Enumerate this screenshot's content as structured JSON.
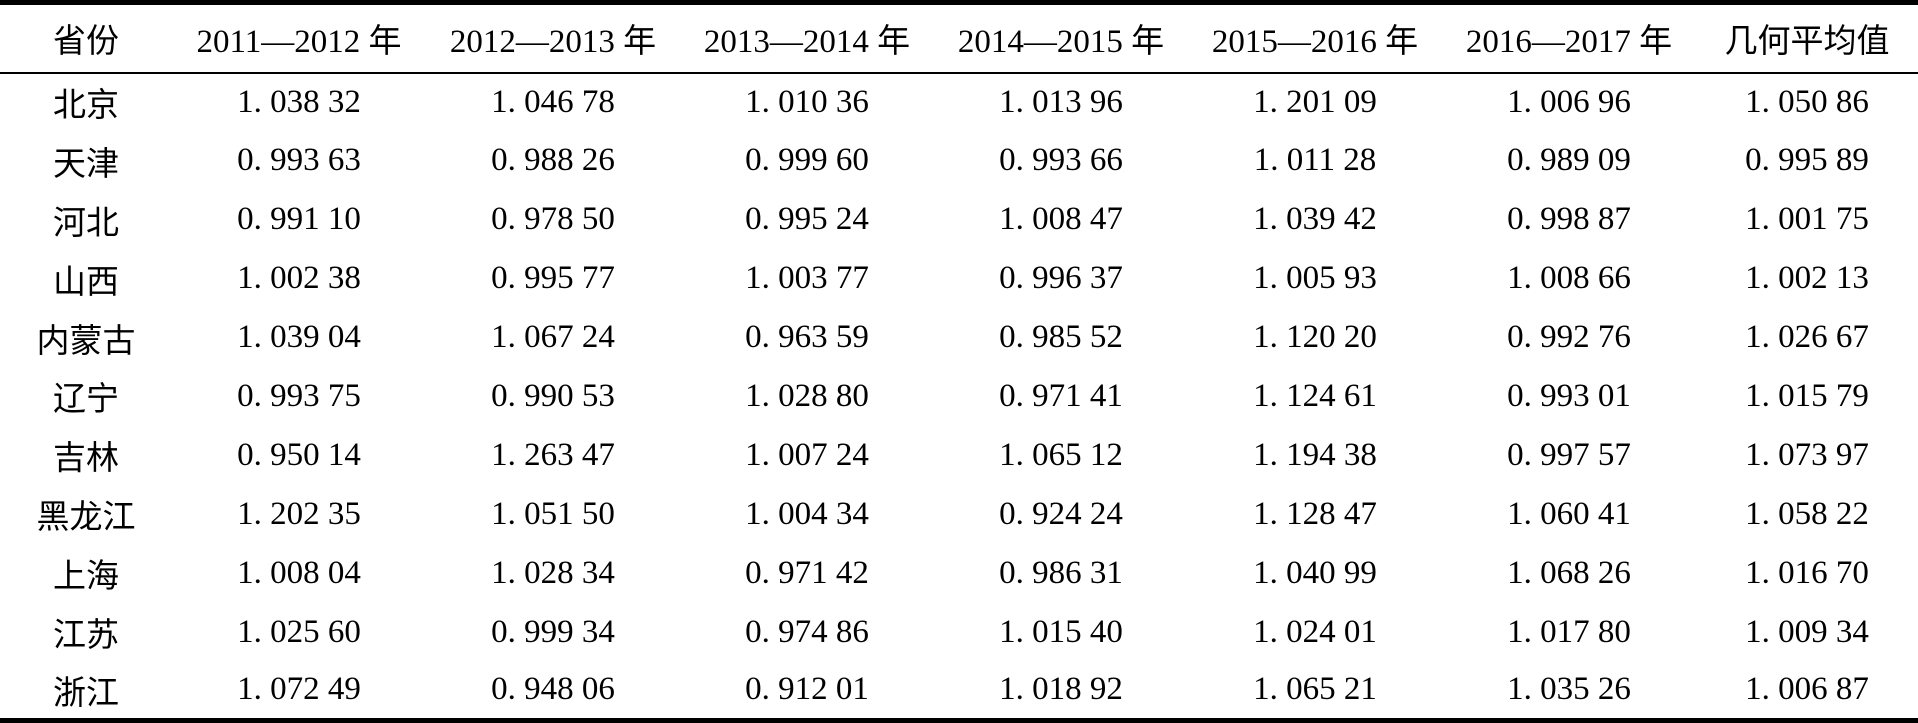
{
  "table": {
    "title_semantic": "province-index-by-year-table",
    "columns": [
      "省份",
      "2011—2012 年",
      "2012—2013 年",
      "2013—2014 年",
      "2014—2015 年",
      "2015—2016 年",
      "2016—2017 年",
      "几何平均值"
    ],
    "rows": [
      {
        "province": "北京",
        "values": [
          "1. 038 32",
          "1. 046 78",
          "1. 010 36",
          "1. 013 96",
          "1. 201 09",
          "1. 006 96",
          "1. 050 86"
        ]
      },
      {
        "province": "天津",
        "values": [
          "0. 993 63",
          "0. 988 26",
          "0. 999 60",
          "0. 993 66",
          "1. 011 28",
          "0. 989 09",
          "0. 995 89"
        ]
      },
      {
        "province": "河北",
        "values": [
          "0. 991 10",
          "0. 978 50",
          "0. 995 24",
          "1. 008 47",
          "1. 039 42",
          "0. 998 87",
          "1. 001 75"
        ]
      },
      {
        "province": "山西",
        "values": [
          "1. 002 38",
          "0. 995 77",
          "1. 003 77",
          "0. 996 37",
          "1. 005 93",
          "1. 008 66",
          "1. 002 13"
        ]
      },
      {
        "province": "内蒙古",
        "values": [
          "1. 039 04",
          "1. 067 24",
          "0. 963 59",
          "0. 985 52",
          "1. 120 20",
          "0. 992 76",
          "1. 026 67"
        ]
      },
      {
        "province": "辽宁",
        "values": [
          "0. 993 75",
          "0. 990 53",
          "1. 028 80",
          "0. 971 41",
          "1. 124 61",
          "0. 993 01",
          "1. 015 79"
        ]
      },
      {
        "province": "吉林",
        "values": [
          "0. 950 14",
          "1. 263 47",
          "1. 007 24",
          "1. 065 12",
          "1. 194 38",
          "0. 997 57",
          "1. 073 97"
        ]
      },
      {
        "province": "黑龙江",
        "values": [
          "1. 202 35",
          "1. 051 50",
          "1. 004 34",
          "0. 924 24",
          "1. 128 47",
          "1. 060 41",
          "1. 058 22"
        ]
      },
      {
        "province": "上海",
        "values": [
          "1. 008 04",
          "1. 028 34",
          "0. 971 42",
          "0. 986 31",
          "1. 040 99",
          "1. 068 26",
          "1. 016 70"
        ]
      },
      {
        "province": "江苏",
        "values": [
          "1. 025 60",
          "0. 999 34",
          "0. 974 86",
          "1. 015 40",
          "1. 024 01",
          "1. 017 80",
          "1. 009 34"
        ]
      },
      {
        "province": "浙江",
        "values": [
          "1. 072 49",
          "0. 948 06",
          "0. 912 01",
          "1. 018 92",
          "1. 065 21",
          "1. 035 26",
          "1. 006 87"
        ]
      }
    ]
  },
  "chart_data": {
    "type": "table",
    "categories": [
      "2011—2012 年",
      "2012—2013 年",
      "2013—2014 年",
      "2014—2015 年",
      "2015—2016 年",
      "2016—2017 年",
      "几何平均值"
    ],
    "series": [
      {
        "name": "北京",
        "values": [
          1.03832,
          1.04678,
          1.01036,
          1.01396,
          1.20109,
          1.00696,
          1.05086
        ]
      },
      {
        "name": "天津",
        "values": [
          0.99363,
          0.98826,
          0.9996,
          0.99366,
          1.01128,
          0.98909,
          0.99589
        ]
      },
      {
        "name": "河北",
        "values": [
          0.9911,
          0.9785,
          0.99524,
          1.00847,
          1.03942,
          0.99887,
          1.00175
        ]
      },
      {
        "name": "山西",
        "values": [
          1.00238,
          0.99577,
          1.00377,
          0.99637,
          1.00593,
          1.00866,
          1.00213
        ]
      },
      {
        "name": "内蒙古",
        "values": [
          1.03904,
          1.06724,
          0.96359,
          0.98552,
          1.1202,
          0.99276,
          1.02667
        ]
      },
      {
        "name": "辽宁",
        "values": [
          0.99375,
          0.99053,
          1.0288,
          0.97141,
          1.12461,
          0.99301,
          1.01579
        ]
      },
      {
        "name": "吉林",
        "values": [
          0.95014,
          1.26347,
          1.00724,
          1.06512,
          1.19438,
          0.99757,
          1.07397
        ]
      },
      {
        "name": "黑龙江",
        "values": [
          1.20235,
          1.0515,
          1.00434,
          0.92424,
          1.12847,
          1.06041,
          1.05822
        ]
      },
      {
        "name": "上海",
        "values": [
          1.00804,
          1.02834,
          0.97142,
          0.98631,
          1.04099,
          1.06826,
          1.0167
        ]
      },
      {
        "name": "江苏",
        "values": [
          1.0256,
          0.99934,
          0.97486,
          1.0154,
          1.02401,
          1.0178,
          1.00934
        ]
      },
      {
        "name": "浙江",
        "values": [
          1.07249,
          0.94806,
          0.91201,
          1.01892,
          1.06521,
          1.03526,
          1.00687
        ]
      }
    ]
  }
}
